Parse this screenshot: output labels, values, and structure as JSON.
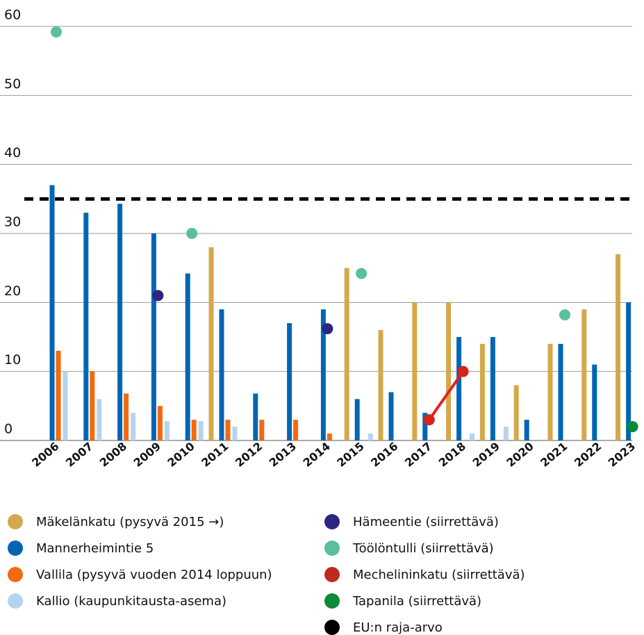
{
  "chart_data": {
    "type": "bar",
    "categories": [
      "2006",
      "2007",
      "2008",
      "2009",
      "2010",
      "2011",
      "2012",
      "2013",
      "2014",
      "2015",
      "2016",
      "2017",
      "2018",
      "2019",
      "2020",
      "2021",
      "2022",
      "2023"
    ],
    "ylim": [
      0,
      60
    ],
    "yticks": [
      0,
      10,
      20,
      30,
      40,
      50,
      60
    ],
    "grid": true,
    "series": [
      {
        "name": "Mäkelänkatu (pysyvä 2015 →)",
        "kind": "bar",
        "color": "#d4a84b",
        "values": [
          null,
          null,
          null,
          null,
          null,
          28,
          null,
          null,
          null,
          25,
          16,
          20,
          20,
          14,
          8,
          14,
          19,
          27
        ]
      },
      {
        "name": "Mannerheimintie 5",
        "kind": "bar",
        "color": "#0066b3",
        "values": [
          37,
          33,
          34.3,
          30,
          24.2,
          19,
          6.8,
          17,
          19,
          6,
          7,
          4,
          15,
          15,
          3,
          14,
          11,
          20
        ]
      },
      {
        "name": "Vallila (pysyvä vuoden 2014 loppuun)",
        "kind": "bar",
        "color": "#f26a0f",
        "values": [
          13,
          10,
          6.8,
          5,
          3,
          3,
          3,
          3,
          1,
          null,
          null,
          null,
          null,
          null,
          null,
          null,
          null,
          null
        ]
      },
      {
        "name": "Kallio (kaupunkitausta-asema)",
        "kind": "bar",
        "color": "#b6d3ee",
        "values": [
          10,
          6,
          4,
          2.8,
          2.8,
          2,
          null,
          null,
          null,
          1,
          null,
          null,
          1,
          2,
          null,
          null,
          null,
          null
        ]
      },
      {
        "name": "Hämeentie (siirrettävä)",
        "kind": "dot",
        "color": "#2d2580",
        "values": [
          null,
          null,
          null,
          21,
          null,
          null,
          null,
          null,
          16.2,
          null,
          null,
          null,
          null,
          null,
          null,
          null,
          null,
          null
        ]
      },
      {
        "name": "Töölöntulli (siirrettävä)",
        "kind": "dot",
        "color": "#5bbf9c",
        "values": [
          59.2,
          null,
          null,
          null,
          30,
          null,
          null,
          null,
          null,
          24.2,
          null,
          null,
          null,
          null,
          null,
          18.2,
          null,
          null
        ]
      },
      {
        "name": "Mechelininkatu (siirrettävä)",
        "kind": "line",
        "color": "#c0291d",
        "values": [
          null,
          null,
          null,
          null,
          null,
          null,
          null,
          null,
          null,
          null,
          null,
          3,
          10,
          null,
          null,
          null,
          null,
          null
        ]
      },
      {
        "name": "Tapanila (siirrettävä)",
        "kind": "dot",
        "color": "#0a8a3a",
        "values": [
          null,
          null,
          null,
          null,
          null,
          null,
          null,
          null,
          null,
          null,
          null,
          null,
          null,
          null,
          null,
          null,
          null,
          2
        ]
      }
    ],
    "reference_line": {
      "name": "EU:n raja-arvo",
      "value": 35,
      "color": "#000000"
    }
  }
}
